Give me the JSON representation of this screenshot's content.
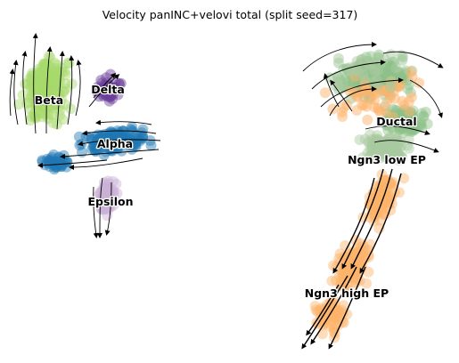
{
  "chart_data": {
    "type": "scatter",
    "title": "Velocity panINC+velovi total (split seed=317)",
    "xlabel": "",
    "ylabel": "",
    "grid": false,
    "legend": "none",
    "clusters": [
      {
        "name": "Beta",
        "color": "#a6d96a"
      },
      {
        "name": "Delta",
        "color": "#6a3d9a"
      },
      {
        "name": "Alpha",
        "color": "#1f78b4"
      },
      {
        "name": "Epsilon",
        "color": "#cab2d6"
      },
      {
        "name": "Ductal",
        "color": "#8fc08a"
      },
      {
        "name": "Ngn3 low EP",
        "color": "#a9c9a0"
      },
      {
        "name": "Ngn3 high EP",
        "color": "#fdb36b"
      }
    ]
  }
}
